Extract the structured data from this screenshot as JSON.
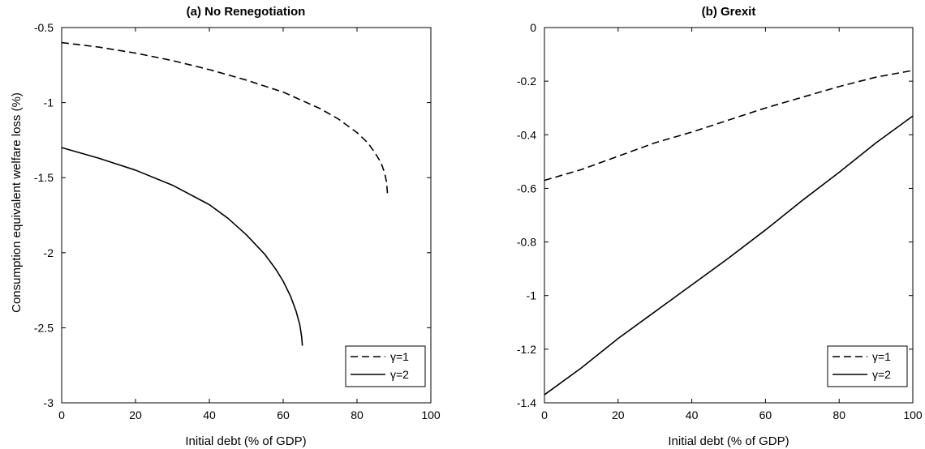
{
  "chart_data": [
    {
      "type": "line",
      "title": "(a) No Renegotiation",
      "xlabel": "Initial debt (% of GDP)",
      "ylabel": "Consumption equivalent welfare loss (%)",
      "xlim": [
        0,
        100
      ],
      "ylim": [
        -3,
        -0.5
      ],
      "xticks": [
        0,
        20,
        40,
        60,
        80,
        100
      ],
      "yticks": [
        -3,
        -2.5,
        -2,
        -1.5,
        -1,
        -0.5
      ],
      "xtick_labels": [
        "0",
        "20",
        "40",
        "60",
        "80",
        "100"
      ],
      "ytick_labels": [
        "-3",
        "-2.5",
        "-2",
        "-1.5",
        "-1",
        "-0.5"
      ],
      "legend": "bottom-right",
      "series": [
        {
          "name": "γ=1",
          "style": "dashed",
          "x": [
            0,
            10,
            20,
            30,
            40,
            50,
            60,
            70,
            75,
            80,
            83,
            85,
            86.5,
            87.5,
            88,
            88.3
          ],
          "y": [
            -0.6,
            -0.63,
            -0.67,
            -0.72,
            -0.78,
            -0.85,
            -0.93,
            -1.04,
            -1.11,
            -1.2,
            -1.27,
            -1.34,
            -1.4,
            -1.47,
            -1.53,
            -1.62
          ]
        },
        {
          "name": "γ=2",
          "style": "solid",
          "x": [
            0,
            10,
            20,
            30,
            40,
            45,
            50,
            55,
            58,
            60,
            62,
            63.5,
            64.5,
            65,
            65.2
          ],
          "y": [
            -1.3,
            -1.37,
            -1.45,
            -1.55,
            -1.68,
            -1.77,
            -1.88,
            -2.01,
            -2.11,
            -2.19,
            -2.29,
            -2.39,
            -2.48,
            -2.56,
            -2.62
          ]
        }
      ]
    },
    {
      "type": "line",
      "title": "(b) Grexit",
      "xlabel": "Initial debt (% of GDP)",
      "ylabel": "",
      "xlim": [
        0,
        100
      ],
      "ylim": [
        -1.4,
        0
      ],
      "xticks": [
        0,
        20,
        40,
        60,
        80,
        100
      ],
      "yticks": [
        -1.4,
        -1.2,
        -1,
        -0.8,
        -0.6,
        -0.4,
        -0.2,
        0
      ],
      "xtick_labels": [
        "0",
        "20",
        "40",
        "60",
        "80",
        "100"
      ],
      "ytick_labels": [
        "-1.4",
        "-1.2",
        "-1",
        "-0.8",
        "-0.6",
        "-0.4",
        "-0.2",
        "0"
      ],
      "legend": "bottom-right",
      "series": [
        {
          "name": "γ=1",
          "style": "dashed",
          "x": [
            0,
            10,
            20,
            30,
            40,
            50,
            60,
            70,
            80,
            90,
            100
          ],
          "y": [
            -0.57,
            -0.53,
            -0.48,
            -0.43,
            -0.39,
            -0.345,
            -0.3,
            -0.26,
            -0.22,
            -0.185,
            -0.16
          ]
        },
        {
          "name": "γ=2",
          "style": "solid",
          "x": [
            0,
            10,
            20,
            30,
            40,
            50,
            60,
            70,
            80,
            90,
            100
          ],
          "y": [
            -1.37,
            -1.27,
            -1.16,
            -1.06,
            -0.96,
            -0.86,
            -0.755,
            -0.645,
            -0.54,
            -0.43,
            -0.33
          ]
        }
      ]
    }
  ]
}
